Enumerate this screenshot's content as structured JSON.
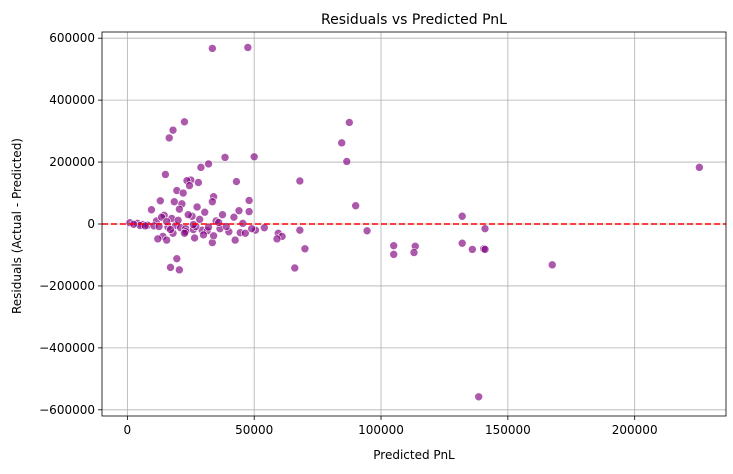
{
  "chart_data": {
    "type": "scatter",
    "title": "Residuals vs Predicted PnL",
    "xlabel": "Predicted PnL",
    "ylabel": "Residuals (Actual - Predicted)",
    "xlim": [
      -10000,
      236000
    ],
    "ylim": [
      -620000,
      620000
    ],
    "xticks": [
      0,
      50000,
      100000,
      150000,
      200000
    ],
    "xtick_labels": [
      "0",
      "50000",
      "100000",
      "150000",
      "200000"
    ],
    "yticks": [
      -600000,
      -400000,
      -200000,
      0,
      200000,
      400000,
      600000
    ],
    "ytick_labels": [
      "−600000",
      "−400000",
      "−200000",
      "0",
      "200000",
      "400000",
      "600000"
    ],
    "grid": true,
    "point_color": "#800080",
    "reference_line": {
      "y": 0,
      "color": "#ff0000",
      "style": "dashed"
    },
    "points": [
      [
        33500,
        567000
      ],
      [
        47500,
        570000
      ],
      [
        22500,
        330000
      ],
      [
        87500,
        328000
      ],
      [
        18000,
        303000
      ],
      [
        16500,
        278000
      ],
      [
        84500,
        262000
      ],
      [
        50000,
        217000
      ],
      [
        38500,
        215000
      ],
      [
        86500,
        202000
      ],
      [
        32000,
        194000
      ],
      [
        29000,
        183000
      ],
      [
        225500,
        183000
      ],
      [
        15000,
        160000
      ],
      [
        25000,
        142000
      ],
      [
        23500,
        140000
      ],
      [
        68000,
        139000
      ],
      [
        43000,
        137000
      ],
      [
        28000,
        134000
      ],
      [
        24500,
        124000
      ],
      [
        19500,
        108000
      ],
      [
        22000,
        100000
      ],
      [
        34000,
        88000
      ],
      [
        48000,
        76000
      ],
      [
        33500,
        72000
      ],
      [
        18500,
        72000
      ],
      [
        13000,
        75000
      ],
      [
        21500,
        65000
      ],
      [
        90000,
        59000
      ],
      [
        27500,
        55000
      ],
      [
        20500,
        48000
      ],
      [
        9500,
        46000
      ],
      [
        44000,
        43000
      ],
      [
        48000,
        40000
      ],
      [
        30500,
        38000
      ],
      [
        37500,
        30000
      ],
      [
        14500,
        28000
      ],
      [
        25500,
        25000
      ],
      [
        42000,
        22000
      ],
      [
        132000,
        25000
      ],
      [
        17500,
        18000
      ],
      [
        28500,
        15000
      ],
      [
        35000,
        10000
      ],
      [
        11500,
        10000
      ],
      [
        1000,
        4000
      ],
      [
        4000,
        2000
      ],
      [
        6000,
        -2000
      ],
      [
        8000,
        -4000
      ],
      [
        10500,
        -6000
      ],
      [
        12500,
        -8000
      ],
      [
        16000,
        -10000
      ],
      [
        19000,
        -5000
      ],
      [
        21000,
        -12000
      ],
      [
        23000,
        -15000
      ],
      [
        26000,
        -18000
      ],
      [
        29500,
        -20000
      ],
      [
        31500,
        -22000
      ],
      [
        40000,
        -25000
      ],
      [
        44500,
        -28000
      ],
      [
        46500,
        -30000
      ],
      [
        50500,
        -20000
      ],
      [
        54000,
        -12000
      ],
      [
        59500,
        -30000
      ],
      [
        61000,
        -40000
      ],
      [
        59000,
        -48000
      ],
      [
        36500,
        -15000
      ],
      [
        18000,
        -30000
      ],
      [
        14000,
        -40000
      ],
      [
        26500,
        -45000
      ],
      [
        33500,
        -60000
      ],
      [
        34000,
        -38000
      ],
      [
        42500,
        -52000
      ],
      [
        49000,
        -15000
      ],
      [
        94500,
        -22000
      ],
      [
        68000,
        -20000
      ],
      [
        70000,
        -80000
      ],
      [
        66000,
        -142000
      ],
      [
        105000,
        -70000
      ],
      [
        105000,
        -98000
      ],
      [
        113500,
        -72000
      ],
      [
        113000,
        -92000
      ],
      [
        132000,
        -62000
      ],
      [
        136000,
        -82000
      ],
      [
        140500,
        -80000
      ],
      [
        141000,
        -82000
      ],
      [
        141000,
        -15000
      ],
      [
        167500,
        -132000
      ],
      [
        17000,
        -140000
      ],
      [
        19500,
        -112000
      ],
      [
        20500,
        -148000
      ],
      [
        15500,
        -52000
      ],
      [
        12000,
        -48000
      ],
      [
        23000,
        -25000
      ],
      [
        27000,
        -8000
      ],
      [
        30000,
        -35000
      ],
      [
        32000,
        -10000
      ],
      [
        138500,
        -558000
      ],
      [
        5000,
        -5000
      ],
      [
        7000,
        -6000
      ],
      [
        2500,
        -1000
      ],
      [
        13500,
        22000
      ],
      [
        15500,
        8000
      ],
      [
        20000,
        12000
      ],
      [
        24000,
        30000
      ],
      [
        26000,
        -2000
      ],
      [
        17000,
        -18000
      ],
      [
        22500,
        -30000
      ],
      [
        36000,
        5000
      ],
      [
        39000,
        -8000
      ],
      [
        45500,
        2000
      ]
    ]
  }
}
